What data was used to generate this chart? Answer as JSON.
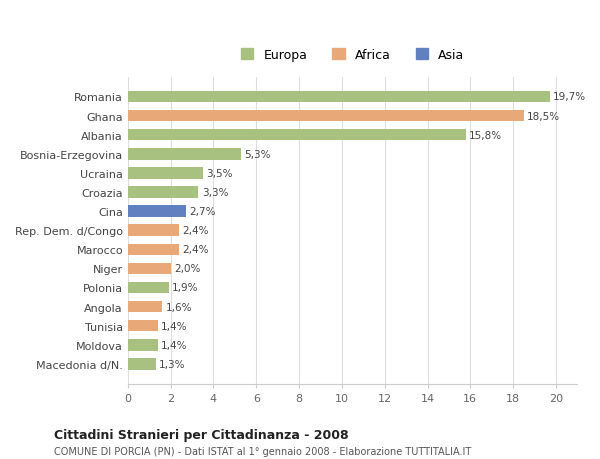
{
  "categories": [
    "Macedonia d/N.",
    "Moldova",
    "Tunisia",
    "Angola",
    "Polonia",
    "Niger",
    "Marocco",
    "Rep. Dem. d/Congo",
    "Cina",
    "Croazia",
    "Ucraina",
    "Bosnia-Erzegovina",
    "Albania",
    "Ghana",
    "Romania"
  ],
  "values": [
    1.3,
    1.4,
    1.4,
    1.6,
    1.9,
    2.0,
    2.4,
    2.4,
    2.7,
    3.3,
    3.5,
    5.3,
    15.8,
    18.5,
    19.7
  ],
  "labels": [
    "1,3%",
    "1,4%",
    "1,4%",
    "1,6%",
    "1,9%",
    "2,0%",
    "2,4%",
    "2,4%",
    "2,7%",
    "3,3%",
    "3,5%",
    "5,3%",
    "15,8%",
    "18,5%",
    "19,7%"
  ],
  "continent": [
    "Europa",
    "Europa",
    "Africa",
    "Africa",
    "Europa",
    "Africa",
    "Africa",
    "Africa",
    "Asia",
    "Europa",
    "Europa",
    "Europa",
    "Europa",
    "Africa",
    "Europa"
  ],
  "colors": {
    "Europa": "#a8c080",
    "Africa": "#e8a878",
    "Asia": "#6080c0"
  },
  "legend_order": [
    "Europa",
    "Africa",
    "Asia"
  ],
  "legend_colors": [
    "#a8c080",
    "#e8a878",
    "#6080c0"
  ],
  "xlim": [
    0,
    21
  ],
  "xticks": [
    0,
    2,
    4,
    6,
    8,
    10,
    12,
    14,
    16,
    18,
    20
  ],
  "title": "Cittadini Stranieri per Cittadinanza - 2008",
  "subtitle": "COMUNE DI PORCIA (PN) - Dati ISTAT al 1° gennaio 2008 - Elaborazione TUTTITALIA.IT",
  "background_color": "#ffffff",
  "grid_color": "#dddddd",
  "bar_height": 0.6
}
